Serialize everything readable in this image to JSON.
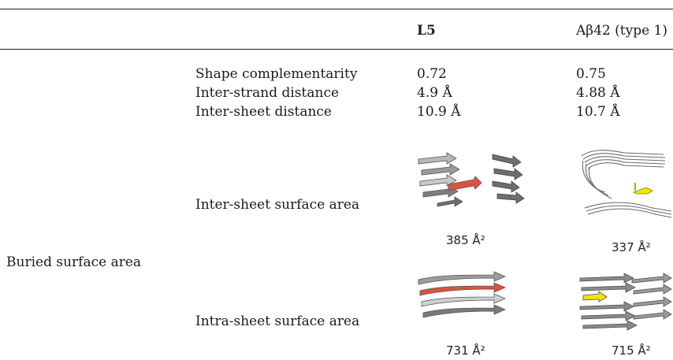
{
  "header": {
    "col_l5": "L5",
    "col_ab42": "Aβ42 (type 1)"
  },
  "rows": [
    {
      "label": "Shape complementarity",
      "l5": "0.72",
      "ab42": "0.75"
    },
    {
      "label": "Inter-strand distance",
      "l5": "4.9 Å",
      "ab42": "4.88 Å"
    },
    {
      "label": "Inter-sheet distance",
      "l5": "10.9 Å",
      "ab42": "10.7 Å"
    }
  ],
  "buried": {
    "group_label": "Buried surface area",
    "inter_label": "Inter-sheet surface area",
    "intra_label": "Intra-sheet surface area",
    "inter_l5_value": "385 Å²",
    "inter_ab42_value": "337 Å²",
    "intra_l5_value": "731 Å²",
    "intra_ab42_value": "715 Å²"
  },
  "colors": {
    "strand_gray": "#7a7a7a",
    "strand_light": "#cfcfcf",
    "highlight_red": "#d9533f",
    "highlight_yellow": "#f2e10a"
  }
}
